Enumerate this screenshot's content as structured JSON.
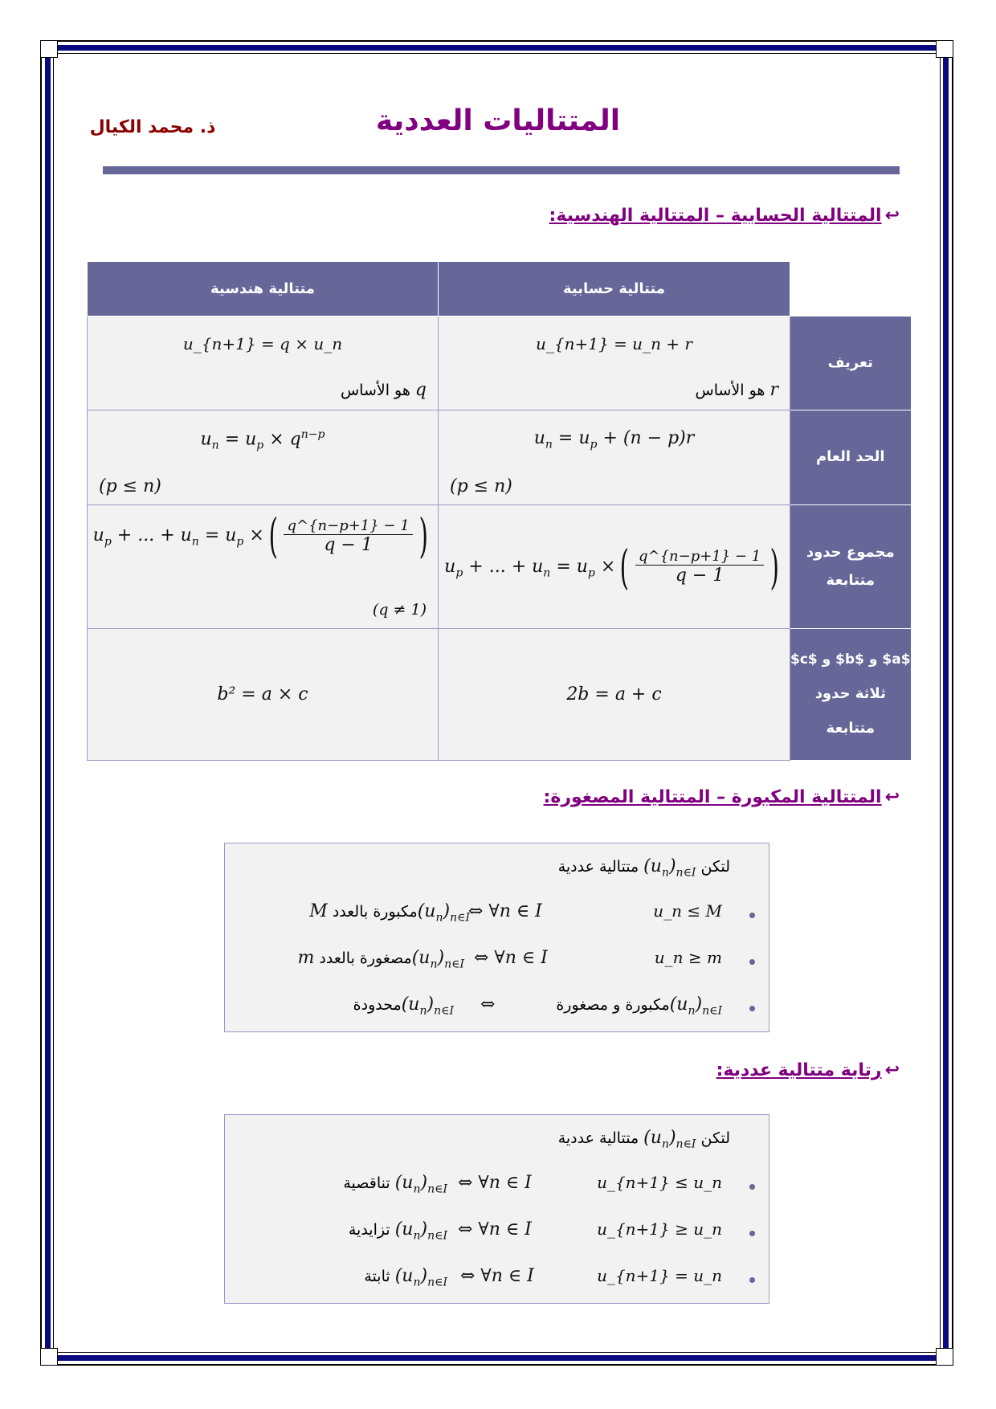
{
  "header": {
    "title": "المتتاليات العددية",
    "author": "ذ. محمد الكيال"
  },
  "colors": {
    "frame": "#0a0a80",
    "accent": "#666699",
    "heading": "#800080",
    "author": "#8b0000",
    "cell": "#f2f2f2"
  },
  "headings": [
    {
      "icon": "return-arrow-icon",
      "text": "المتتالية الحسابية – المتتالية الهندسية:"
    },
    {
      "icon": "return-arrow-icon",
      "text": "المتتالية المكبورة – المتتالية المصغورة:"
    },
    {
      "icon": "return-arrow-icon",
      "text": "رتابة متتالية عددية:"
    }
  ],
  "table": {
    "col_headers": {
      "arith": "متتالية حسابية",
      "geom": "متتالية هندسية"
    },
    "rows": [
      {
        "label": "تعريف",
        "arith": {
          "formula": "u_{n+1} = u_n + r",
          "note": "$r$ هو الأساس"
        },
        "geom": {
          "formula": "u_{n+1} = q × u_n",
          "note": "$q$ هو الأساس"
        }
      },
      {
        "label": "الحد العام",
        "arith": {
          "formula": "u_n = u_p + (n − p)r",
          "note": "(p ≤ n)"
        },
        "geom": {
          "formula": "u_n = u_p × q^{n−p}",
          "note": "(p ≤ n)"
        }
      },
      {
        "label": "مجموع حدود متتابعة",
        "arith": {
          "prefix": "u_p + ... + u_n = u_p ×",
          "numerator": "q^{n−p+1} − 1",
          "denominator": "q − 1"
        },
        "geom": {
          "prefix": "u_p + ... + u_n = u_p ×",
          "numerator": "q^{n−p+1} − 1",
          "denominator": "q − 1",
          "note": "(q ≠ 1)"
        }
      },
      {
        "label_lines": [
          "$a$ و $b$ و $c$",
          "ثلاثة حدود",
          "متتابعة"
        ],
        "arith": {
          "formula": "2b = a + c"
        },
        "geom": {
          "formula": "b² = a × c"
        }
      }
    ]
  },
  "bounded_box": {
    "intro": "لتكن $(u_n)_{n∈I}$ متتالية عددية",
    "items": [
      {
        "condition": "u_n ≤ M",
        "quantifier": "⇔ ∀n ∈ I",
        "statement": "$(u_n)_{n∈I}$مكبورة بالعدد  $M$"
      },
      {
        "condition": "u_n ≥ m",
        "quantifier": "⇔ ∀n ∈ I",
        "statement": "$(u_n)_{n∈I}$مصغورة بالعدد  $m$"
      },
      {
        "condition": "",
        "quantifier": "⇔",
        "statement": "$(u_n)_{n∈I}$مكبورة و مصغورة",
        "left_statement": "$(u_n)_{n∈I}$محدودة"
      }
    ]
  },
  "monotony_box": {
    "intro": "لتكن $(u_n)_{n∈I}$ متتالية عددية",
    "items": [
      {
        "condition": "u_{n+1} ≤ u_n",
        "quantifier": "⇔ ∀n ∈ I",
        "statement": "$(u_n)_{n∈I}$ تناقصية"
      },
      {
        "condition": "u_{n+1} ≥ u_n",
        "quantifier": "⇔ ∀n ∈ I",
        "statement": "$(u_n)_{n∈I}$ تزايدية"
      },
      {
        "condition": "u_{n+1} = u_n",
        "quantifier": "⇔ ∀n ∈ I",
        "statement": "$(u_n)_{n∈I}$ ثابتة"
      }
    ]
  }
}
